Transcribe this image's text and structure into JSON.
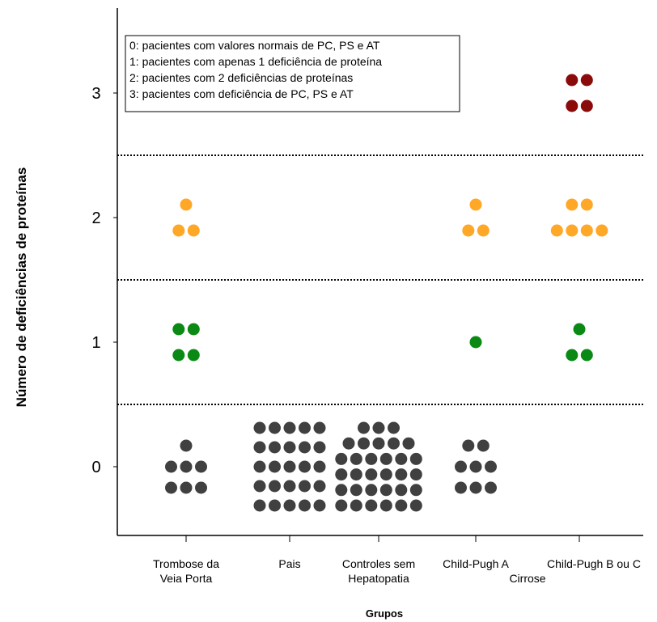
{
  "chart_data": {
    "type": "scatter",
    "xlabel": "Grupos",
    "ylabel": "Número de deficiências de proteínas",
    "ylim": [
      -0.5,
      3.5
    ],
    "yticks": [
      0,
      1,
      2,
      3
    ],
    "separators": [
      0.5,
      1.5,
      2.5
    ],
    "grid": false,
    "categories": [
      {
        "line1": "Trombose da",
        "line2": "Veia Porta"
      },
      {
        "line1": "Pais",
        "line2": ""
      },
      {
        "line1": "Controles sem",
        "line2": "Hepatopatia"
      },
      {
        "line1": "Child-Pugh A",
        "line2": ""
      },
      {
        "line1": "Child-Pugh B ou C",
        "line2": ""
      }
    ],
    "group_label": {
      "text": "Cirrose",
      "spans": [
        3,
        4
      ]
    },
    "legend": {
      "placement": "top-left",
      "entries": [
        "0: pacientes com valores normais de PC, PS e AT",
        "1: pacientes com apenas 1 deficiência de proteína",
        "2: pacientes com 2 deficiências de proteínas",
        "3: pacientes com deficiência de PC, PS e AT"
      ]
    },
    "level_colors": {
      "0": "#404040",
      "1": "#0a8a14",
      "2": "#ffa726",
      "3": "#8b0a0a"
    },
    "counts": [
      [
        7,
        4,
        3,
        0
      ],
      [
        25,
        0,
        0,
        0
      ],
      [
        32,
        0,
        0,
        0
      ],
      [
        8,
        1,
        3,
        0
      ],
      [
        0,
        3,
        6,
        4
      ]
    ]
  }
}
